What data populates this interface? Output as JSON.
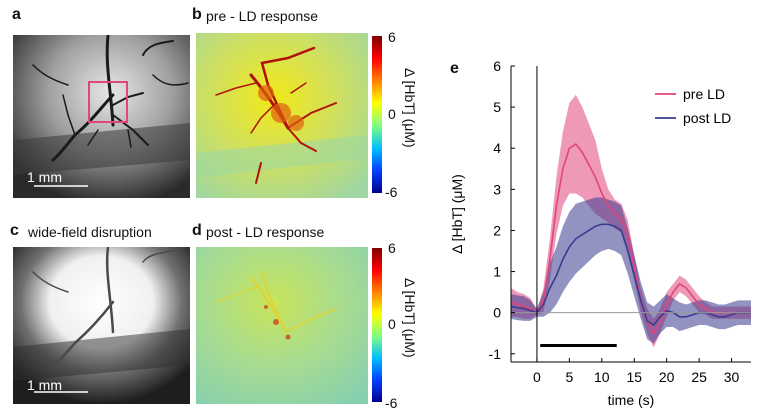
{
  "panels": {
    "a": {
      "letter": "a",
      "scale_bar": "1 mm"
    },
    "b": {
      "letter": "b",
      "title": "pre - LD response"
    },
    "c": {
      "letter": "c",
      "title": "wide-field disruption",
      "scale_bar": "1 mm"
    },
    "d": {
      "letter": "d",
      "title": "post - LD response"
    },
    "e": {
      "letter": "e"
    }
  },
  "colorbar": {
    "title": "Δ [HbT] (μM)",
    "ticks": [
      "6",
      "0",
      "-6"
    ]
  },
  "chart_data": {
    "type": "line",
    "xlabel": "time (s)",
    "ylabel": "Δ [HbT] (μM)",
    "xlim": [
      -4,
      33
    ],
    "ylim": [
      -1.2,
      6
    ],
    "xticks": [
      0,
      5,
      10,
      15,
      20,
      25,
      30
    ],
    "yticks": [
      -1,
      0,
      1,
      2,
      3,
      4,
      5,
      6
    ],
    "stimulus_bar": [
      0.5,
      12.3
    ],
    "legend_position": "top-right",
    "x": [
      -4,
      -3,
      -2,
      -1,
      0,
      1,
      2,
      3,
      4,
      5,
      6,
      7,
      8,
      9,
      10,
      11,
      12,
      13,
      14,
      15,
      16,
      17,
      18,
      19,
      20,
      21,
      22,
      23,
      24,
      25,
      26,
      27,
      28,
      29,
      30,
      31,
      32,
      33
    ],
    "series": [
      {
        "name": "pre LD",
        "color": "#e0457b",
        "values": [
          0.25,
          0.2,
          0.15,
          0.1,
          0.0,
          0.3,
          1.3,
          2.6,
          3.5,
          4.0,
          4.1,
          3.9,
          3.6,
          3.3,
          2.9,
          2.6,
          2.4,
          2.3,
          1.9,
          1.1,
          0.3,
          -0.2,
          -0.5,
          -0.2,
          0.2,
          0.5,
          0.7,
          0.6,
          0.4,
          0.2,
          0.1,
          0.0,
          0.0,
          0.0,
          0.0,
          0.0,
          0.0,
          0.0
        ],
        "band": [
          0.35,
          0.3,
          0.3,
          0.25,
          0.05,
          0.3,
          0.5,
          0.7,
          0.9,
          1.1,
          1.2,
          1.1,
          1.0,
          0.9,
          0.6,
          0.4,
          0.35,
          0.35,
          0.35,
          0.3,
          0.3,
          0.3,
          0.35,
          0.3,
          0.3,
          0.2,
          0.2,
          0.2,
          0.2,
          0.2,
          0.15,
          0.15,
          0.15,
          0.15,
          0.15,
          0.15,
          0.15,
          0.15
        ]
      },
      {
        "name": "post LD",
        "color": "#3b3b8f",
        "values": [
          0.15,
          0.12,
          0.1,
          0.05,
          0.0,
          0.2,
          0.6,
          0.9,
          1.3,
          1.6,
          1.8,
          1.9,
          2.0,
          2.1,
          2.15,
          2.15,
          2.1,
          2.0,
          1.5,
          0.9,
          0.3,
          -0.2,
          -0.3,
          -0.1,
          0.05,
          0.0,
          -0.1,
          -0.1,
          -0.05,
          0.0,
          0.0,
          -0.05,
          -0.1,
          -0.1,
          -0.05,
          0.0,
          0.0,
          0.0
        ],
        "band": [
          0.3,
          0.3,
          0.3,
          0.25,
          0.1,
          0.3,
          0.6,
          0.7,
          0.8,
          0.85,
          0.85,
          0.8,
          0.75,
          0.7,
          0.65,
          0.6,
          0.6,
          0.6,
          0.55,
          0.5,
          0.45,
          0.45,
          0.45,
          0.4,
          0.4,
          0.35,
          0.35,
          0.3,
          0.3,
          0.3,
          0.3,
          0.3,
          0.3,
          0.3,
          0.3,
          0.3,
          0.3,
          0.3
        ]
      }
    ]
  }
}
